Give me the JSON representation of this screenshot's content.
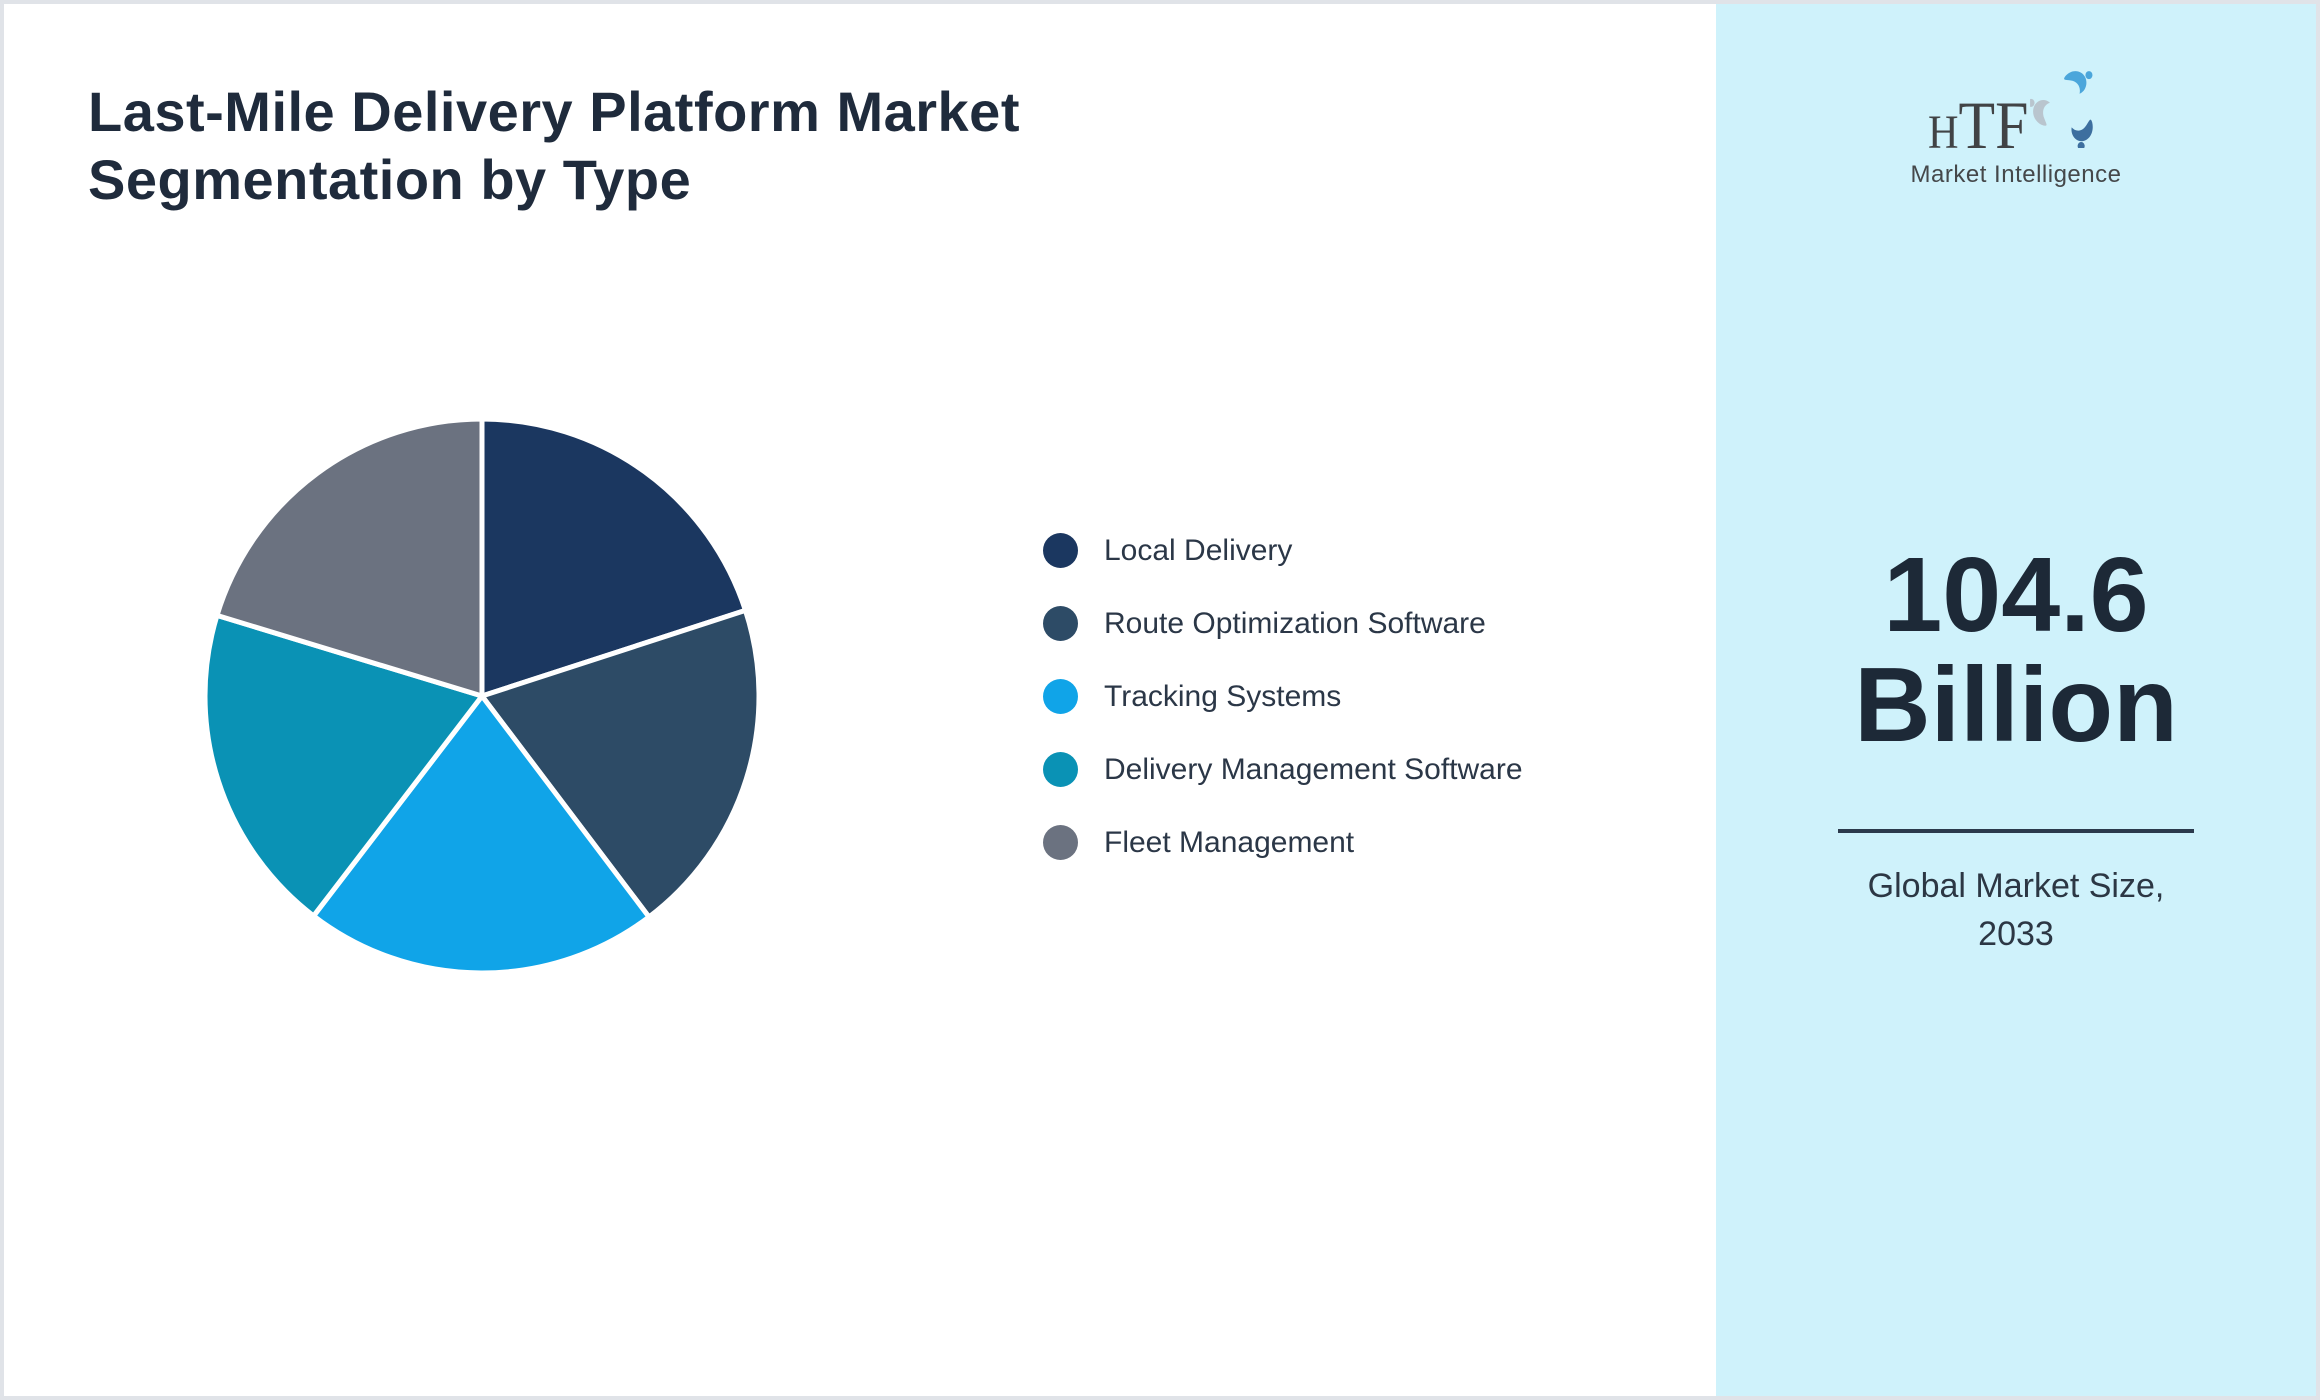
{
  "page": {
    "title": "Last-Mile Delivery Platform Market Segmentation by Type"
  },
  "chart_data": {
    "type": "pie",
    "title": "Last-Mile Delivery Platform Market Segmentation by Type",
    "labels": [
      "Local Delivery",
      "Route Optimization Software",
      "Tracking Systems",
      "Delivery Management Software",
      "Fleet Management"
    ],
    "values": [
      20.0,
      19.7,
      20.7,
      19.3,
      20.3
    ],
    "unit": "percent",
    "colors": [
      "#1b3760",
      "#2d4b66",
      "#10a4e8",
      "#0a92b5",
      "#6b7280"
    ],
    "start_angle_deg": 0,
    "direction": "clockwise",
    "slice_border_color": "#ffffff",
    "legend_position": "right",
    "data_labels": "none"
  },
  "sidebar": {
    "background_color": "#cff2fb",
    "logo": {
      "text_h": "H",
      "text_tf": "TF",
      "subtitle": "Market Intelligence",
      "swirl_colors": [
        "#4ba6db",
        "#3d6f9f",
        "#b9c5ce"
      ]
    },
    "market_size_value": "104.6",
    "market_size_unit": "Billion",
    "caption_line1": "Global Market Size,",
    "caption_line2": "2033",
    "accent_text_color": "#1d2937"
  }
}
